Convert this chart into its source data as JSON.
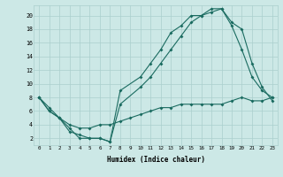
{
  "xlabel": "Humidex (Indice chaleur)",
  "bg_color": "#cce8e6",
  "grid_color": "#aacfcd",
  "line_color": "#1a6b60",
  "xlim": [
    -0.5,
    23.5
  ],
  "ylim": [
    1,
    21.5
  ],
  "xticks": [
    0,
    1,
    2,
    3,
    4,
    5,
    6,
    7,
    8,
    9,
    10,
    11,
    12,
    13,
    14,
    15,
    16,
    17,
    18,
    19,
    20,
    21,
    22,
    23
  ],
  "yticks": [
    2,
    4,
    6,
    8,
    10,
    12,
    14,
    16,
    18,
    20
  ],
  "line1_x": [
    0,
    1,
    2,
    3,
    4,
    5,
    6,
    7,
    8,
    10,
    11,
    12,
    13,
    14,
    15,
    16,
    17,
    18,
    19,
    20,
    21,
    22,
    23
  ],
  "line1_y": [
    8,
    6,
    5,
    3,
    2.5,
    2,
    2,
    1.5,
    9,
    11,
    13,
    15,
    17.5,
    18.5,
    20,
    20,
    21,
    21,
    19,
    18,
    13,
    9.5,
    7.5
  ],
  "line2_x": [
    0,
    1,
    2,
    3,
    4,
    5,
    6,
    7,
    8,
    10,
    11,
    12,
    13,
    14,
    15,
    16,
    17,
    18,
    19,
    20,
    21,
    22,
    23
  ],
  "line2_y": [
    8,
    6,
    5,
    3.5,
    2,
    2,
    2,
    1.5,
    7,
    9.5,
    11,
    13,
    15,
    17,
    19,
    20,
    20.5,
    21,
    18.5,
    15,
    11,
    9,
    8
  ],
  "line3_x": [
    0,
    1,
    2,
    3,
    4,
    5,
    6,
    7,
    8,
    9,
    10,
    11,
    12,
    13,
    14,
    15,
    16,
    17,
    18,
    19,
    20,
    21,
    22,
    23
  ],
  "line3_y": [
    8,
    6.5,
    5,
    4,
    3.5,
    3.5,
    4,
    4,
    4.5,
    5,
    5.5,
    6,
    6.5,
    6.5,
    7,
    7,
    7,
    7,
    7,
    7.5,
    8,
    7.5,
    7.5,
    8
  ]
}
